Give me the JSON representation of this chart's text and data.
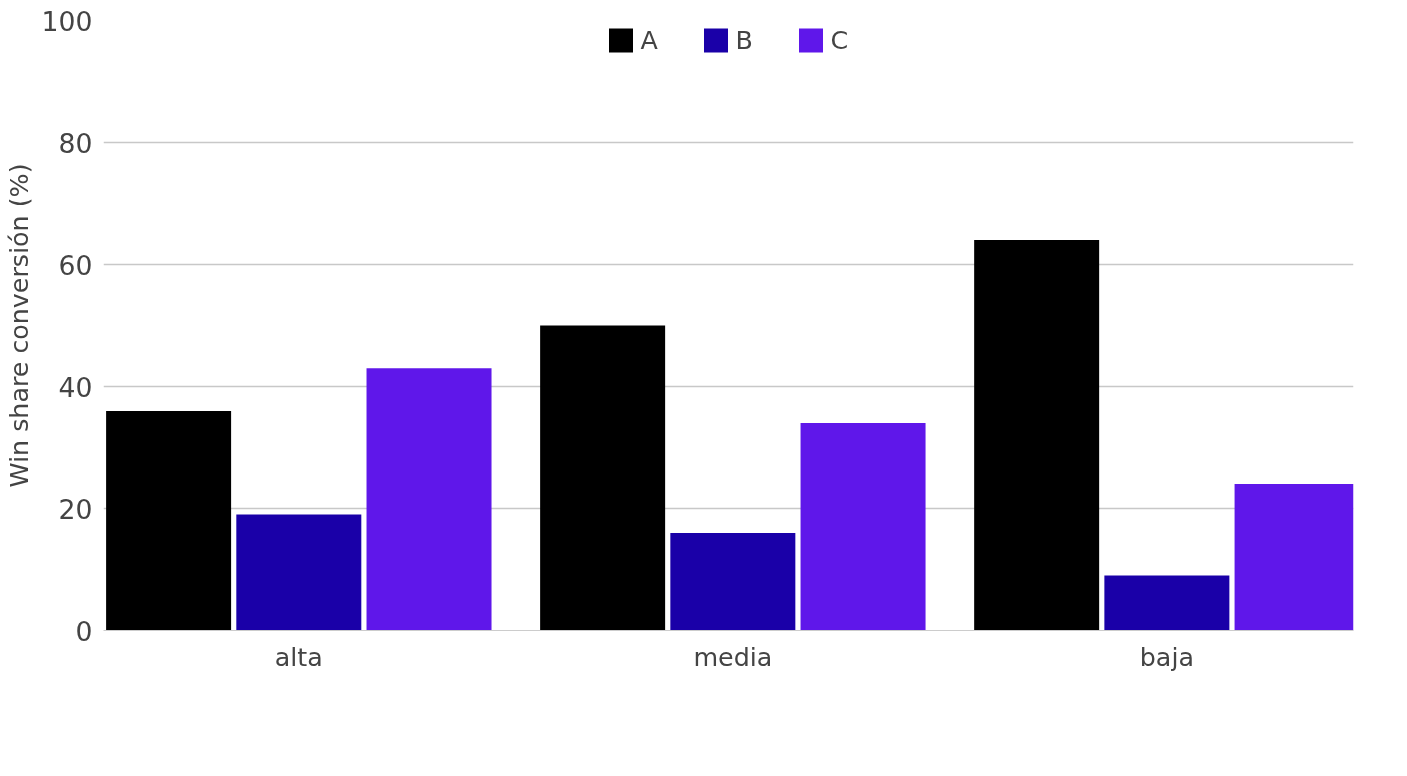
{
  "chart_data": {
    "type": "bar",
    "ylabel": "Win share conversión (%)",
    "categories": [
      "alta",
      "media",
      "baja"
    ],
    "series": [
      {
        "name": "A",
        "color": "#000000",
        "values": [
          36,
          50,
          64
        ]
      },
      {
        "name": "B",
        "color": "#1a00a8",
        "values": [
          19,
          16,
          9
        ]
      },
      {
        "name": "C",
        "color": "#5f17ea",
        "values": [
          43,
          34,
          24
        ]
      }
    ],
    "ylim": [
      0,
      100
    ],
    "yticks": [
      0,
      20,
      40,
      60,
      80,
      100
    ],
    "grid": "y",
    "legend": "top"
  }
}
